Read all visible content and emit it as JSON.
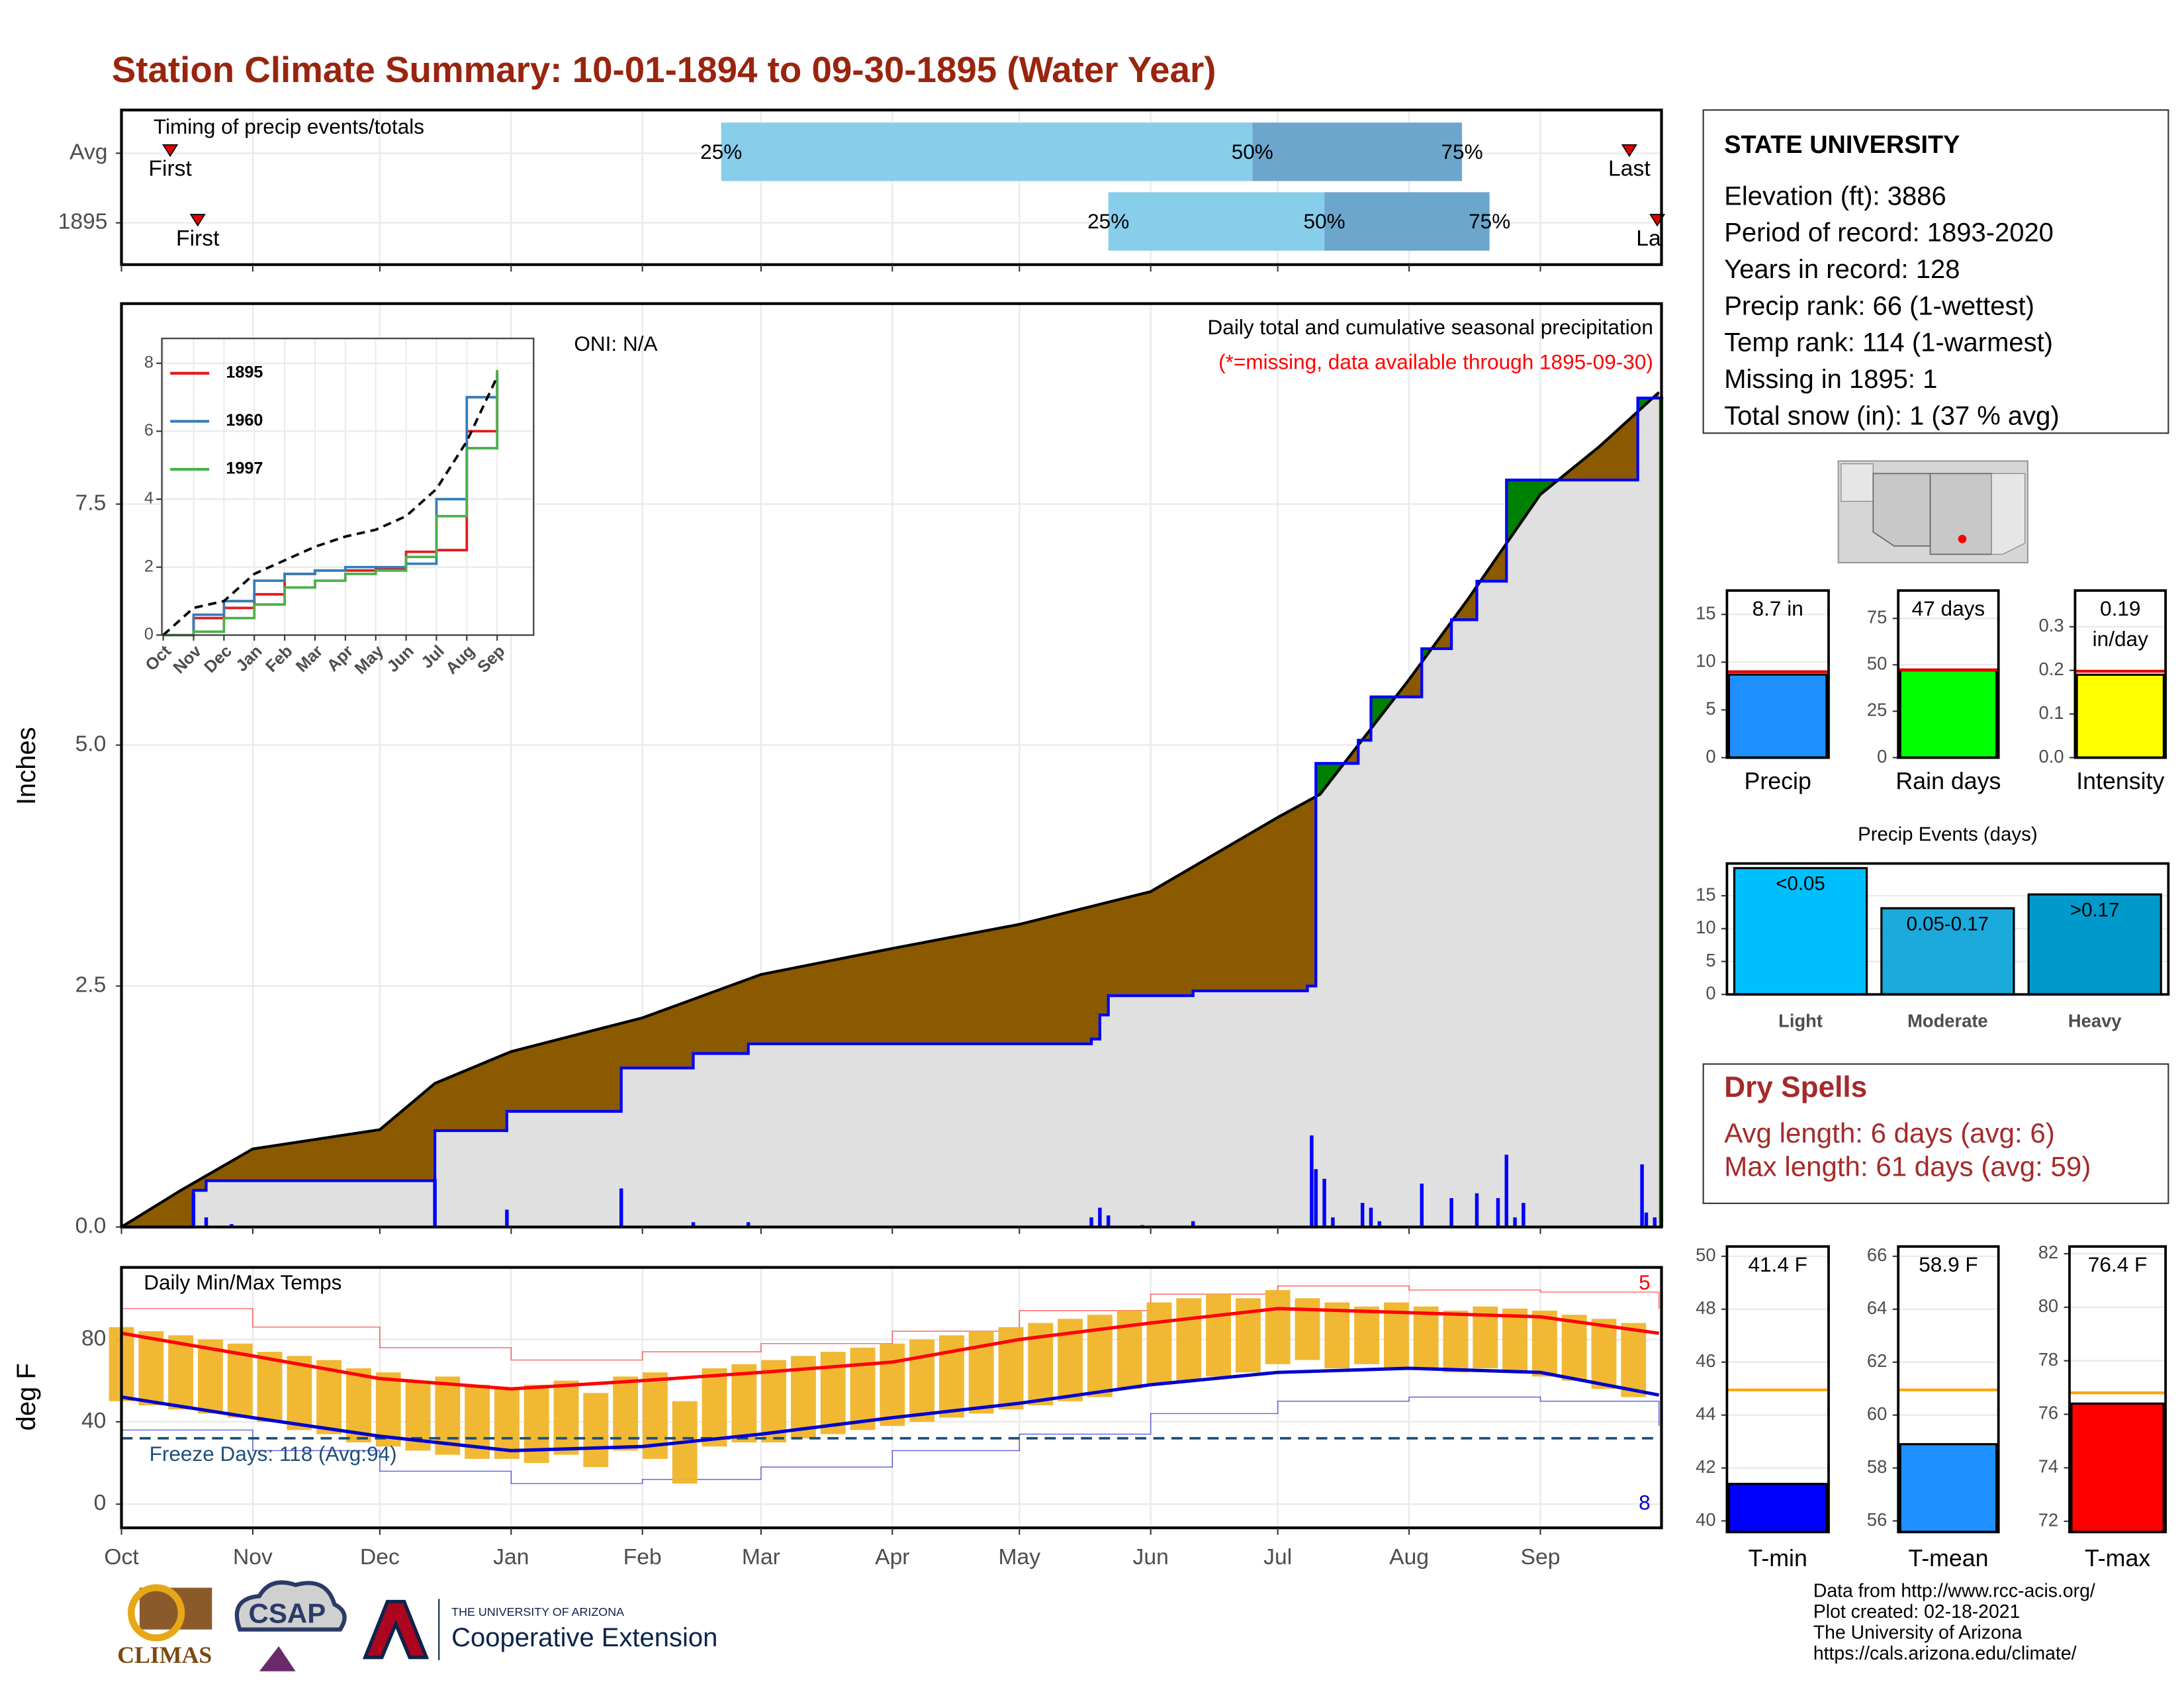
{
  "title": "Station Climate Summary: 10-01-1894 to 09-30-1895 (Water Year)",
  "chart_data": [
    {
      "type": "timing",
      "title": "Timing of precip events/totals",
      "categories": [
        "Avg",
        "1895"
      ],
      "first": [
        11.5,
        18
      ],
      "p25": [
        141.6,
        233
      ],
      "p50": [
        267,
        284
      ],
      "p75": [
        316.5,
        323
      ],
      "last": [
        356,
        362.6
      ],
      "labels": {
        "first": "First",
        "last": "Last",
        "p25": "25%",
        "p50": "50%",
        "p75": "75%"
      },
      "colors": {
        "lower": "#87ceeb",
        "upper": "#6ca6cd",
        "marker": "#e00000"
      }
    },
    {
      "type": "cumulative",
      "title": "Daily total and cumulative seasonal precipitation",
      "subtitle": "(*=missing, data available through 1895-09-30)",
      "annotation": "ONI: N/A",
      "ylabel": "Inches",
      "ylim": [
        0,
        9.58
      ],
      "yticks": [
        {
          "value": 0,
          "label": "0.0"
        },
        2.5,
        {
          "value": 5,
          "label": "5.0"
        },
        7.5
      ],
      "grid": true,
      "average": {
        "x": [
          0,
          14,
          31,
          61,
          74,
          92,
          123,
          151,
          182,
          212,
          243,
          273,
          283,
          304,
          318,
          335,
          349,
          363
        ],
        "values": [
          0,
          0.38,
          0.81,
          1.01,
          1.49,
          1.82,
          2.17,
          2.62,
          2.89,
          3.14,
          3.48,
          4.25,
          4.49,
          5.68,
          6.52,
          7.6,
          8.1,
          8.66
        ]
      },
      "observed": {
        "x": [
          0,
          17,
          20,
          74,
          91,
          118,
          135,
          148,
          229,
          231,
          233,
          253,
          280,
          282,
          292,
          295,
          307,
          314,
          320,
          327,
          358,
          364
        ],
        "values": [
          0,
          0.38,
          0.48,
          1.0,
          1.2,
          1.65,
          1.8,
          1.9,
          1.95,
          2.2,
          2.4,
          2.45,
          2.5,
          4.81,
          5.05,
          5.5,
          6.0,
          6.3,
          6.7,
          7.75,
          8.6,
          8.6
        ],
        "color": "#0000ff"
      },
      "daily": {
        "x": [
          17,
          20,
          26,
          74,
          91,
          118,
          135,
          148,
          229,
          231,
          233,
          241,
          253,
          281,
          282,
          284,
          286,
          293,
          295,
          297,
          307,
          314,
          320,
          325,
          327,
          329,
          331,
          359,
          360,
          362
        ],
        "values": [
          0.35,
          0.1,
          0.03,
          0.5,
          0.18,
          0.4,
          0.05,
          0.05,
          0.1,
          0.2,
          0.12,
          0.02,
          0.06,
          0.95,
          0.6,
          0.5,
          0.1,
          0.25,
          0.2,
          0.06,
          0.45,
          0.3,
          0.35,
          0.3,
          0.75,
          0.1,
          0.25,
          0.65,
          0.15,
          0.1
        ],
        "color": "#0000ff"
      },
      "colors": {
        "below": "#8b5a00",
        "above": "#008000",
        "base": "#e0e0e0"
      }
    },
    {
      "type": "line",
      "categories": [
        "Oct",
        "Nov",
        "Dec",
        "Jan",
        "Feb",
        "Mar",
        "Apr",
        "May",
        "Jun",
        "Jul",
        "Aug",
        "Sep"
      ],
      "ylim": [
        0,
        8.73
      ],
      "yticks": [
        0,
        2,
        4,
        6,
        8
      ],
      "average": [
        0,
        0.8,
        1.0,
        1.8,
        2.2,
        2.6,
        2.9,
        3.1,
        3.5,
        4.3,
        5.7,
        7.6
      ],
      "series": [
        {
          "name": "1895",
          "color": "#e41a1c",
          "values": [
            0,
            0.5,
            0.8,
            1.2,
            1.8,
            1.9,
            1.9,
            1.95,
            2.45,
            2.5,
            6.0,
            7.75
          ]
        },
        {
          "name": "1960",
          "color": "#377eb8",
          "values": [
            0,
            0.6,
            1.0,
            1.6,
            1.8,
            1.9,
            2.0,
            2.0,
            2.1,
            4.0,
            7.0,
            7.7
          ]
        },
        {
          "name": "1997",
          "color": "#4daf4a",
          "values": [
            0,
            0.1,
            0.5,
            0.9,
            1.4,
            1.6,
            1.8,
            1.9,
            2.3,
            3.5,
            5.5,
            7.8
          ]
        }
      ]
    },
    {
      "type": "temps",
      "title": "Daily Min/Max Temps",
      "annotation": "Freeze Days: 118 (Avg:94)",
      "ylabel": "deg F",
      "ylim": [
        -11.5,
        115
      ],
      "yticks": [
        0,
        40,
        80
      ],
      "xlim": [
        0,
        363.6
      ],
      "xticks": [
        {
          "value": 0,
          "label": "Oct"
        },
        {
          "value": 31,
          "label": "Nov"
        },
        {
          "value": 61,
          "label": "Dec"
        },
        {
          "value": 92,
          "label": "Jan"
        },
        {
          "value": 123,
          "label": "Feb"
        },
        {
          "value": 151,
          "label": "Mar"
        },
        {
          "value": 182,
          "label": "Apr"
        },
        {
          "value": 212,
          "label": "May"
        },
        {
          "value": 243,
          "label": "Jun"
        },
        {
          "value": 273,
          "label": "Jul"
        },
        {
          "value": 304,
          "label": "Aug"
        },
        {
          "value": 335,
          "label": "Sep"
        }
      ],
      "freeze_threshold": 32,
      "record_high_count": 5,
      "record_low_count": 8,
      "x": [
        0,
        7,
        14,
        21,
        28,
        35,
        42,
        49,
        56,
        63,
        70,
        77,
        84,
        91,
        98,
        105,
        112,
        119,
        126,
        133,
        140,
        147,
        154,
        161,
        168,
        175,
        182,
        189,
        196,
        203,
        210,
        217,
        224,
        231,
        238,
        245,
        252,
        259,
        266,
        273,
        280,
        287,
        294,
        301,
        308,
        315,
        322,
        329,
        336,
        343,
        350,
        357
      ],
      "high": [
        86,
        84,
        82,
        80,
        78,
        74,
        72,
        70,
        66,
        64,
        60,
        62,
        58,
        56,
        58,
        60,
        54,
        62,
        64,
        50,
        66,
        68,
        70,
        72,
        74,
        76,
        78,
        80,
        82,
        84,
        86,
        88,
        90,
        92,
        94,
        98,
        100,
        102,
        100,
        104,
        100,
        98,
        96,
        98,
        96,
        94,
        96,
        95,
        94,
        92,
        90,
        88
      ],
      "low": [
        50,
        48,
        46,
        44,
        42,
        40,
        36,
        34,
        30,
        28,
        26,
        24,
        22,
        22,
        20,
        24,
        18,
        26,
        22,
        10,
        28,
        30,
        30,
        32,
        34,
        36,
        38,
        40,
        42,
        44,
        46,
        48,
        50,
        52,
        56,
        58,
        60,
        62,
        64,
        68,
        70,
        66,
        68,
        66,
        66,
        64,
        66,
        64,
        62,
        60,
        56,
        52
      ],
      "normals": {
        "x": [
          0,
          31,
          61,
          92,
          123,
          151,
          182,
          212,
          243,
          273,
          304,
          335,
          363
        ],
        "high": [
          83,
          72,
          61,
          56,
          60,
          64,
          69,
          80,
          88,
          95,
          93,
          91,
          83
        ],
        "low": [
          52,
          42,
          33,
          26,
          28,
          34,
          42,
          49,
          58,
          64,
          66,
          64,
          53
        ],
        "record_high": [
          95,
          86,
          76,
          70,
          74,
          78,
          84,
          94,
          102,
          106,
          104,
          103,
          95
        ],
        "record_low": [
          36,
          26,
          16,
          10,
          12,
          18,
          26,
          34,
          44,
          50,
          52,
          50,
          38
        ]
      },
      "colors": {
        "bars": "#f0b429",
        "high": "#ff0000",
        "low": "#0000cd",
        "freeze": "#1f4e79"
      }
    },
    {
      "type": "bar",
      "categories": [
        "Precip"
      ],
      "values": [
        8.7
      ],
      "value_labels": [
        "8.7 in"
      ],
      "average": 9.0,
      "color": "#1e90ff",
      "average_color": "#e00000",
      "ylim": [
        0,
        17.5
      ],
      "yticks": [
        0,
        5,
        10,
        15
      ]
    },
    {
      "type": "bar",
      "categories": [
        "Rain days"
      ],
      "values": [
        47
      ],
      "value_labels": [
        "47 days"
      ],
      "average": 47.3,
      "color": "#00ff00",
      "average_color": "#e00000",
      "ylim": [
        0,
        90
      ],
      "yticks": [
        0,
        25,
        50,
        75
      ]
    },
    {
      "type": "bar",
      "categories": [
        "Intensity"
      ],
      "values": [
        0.19
      ],
      "value_labels": [
        "0.19 in/day"
      ],
      "average": 0.198,
      "color": "#ffff00",
      "average_color": "#e00000",
      "ylim": [
        0,
        0.383
      ],
      "yticks": [
        {
          "value": 0,
          "label": "0.0"
        },
        0.1,
        0.2,
        0.3
      ]
    },
    {
      "type": "bar",
      "title": "Precip Events (days)",
      "categories": [
        "Light",
        "Moderate",
        "Heavy"
      ],
      "values": [
        19.2,
        13.1,
        15.2
      ],
      "bin_labels": [
        "<0.05",
        "0.05-0.17",
        ">0.17"
      ],
      "colors": [
        "#00bfff",
        "#1ca9dc",
        "#0099cc"
      ],
      "ylim": [
        0,
        19.9
      ],
      "yticks": [
        0,
        5,
        10,
        15
      ]
    },
    {
      "type": "bar",
      "categories": [
        "T-min"
      ],
      "values": [
        41.4
      ],
      "value_labels": [
        "41.4 F"
      ],
      "average": 44.95,
      "color": "#0000ff",
      "average_color": "#ffa500",
      "ylim": [
        39.58,
        50.37
      ],
      "yticks": [
        40,
        42,
        44,
        46,
        48,
        50
      ]
    },
    {
      "type": "bar",
      "categories": [
        "T-mean"
      ],
      "values": [
        58.9
      ],
      "value_labels": [
        "58.9 F"
      ],
      "average": 60.95,
      "color": "#1e90ff",
      "average_color": "#ffa500",
      "ylim": [
        55.58,
        66.37
      ],
      "yticks": [
        56,
        58,
        60,
        62,
        64,
        66
      ]
    },
    {
      "type": "bar",
      "categories": [
        "T-max"
      ],
      "values": [
        76.4
      ],
      "value_labels": [
        "76.4 F"
      ],
      "average": 76.8,
      "color": "#ff0000",
      "average_color": "#ffa500",
      "ylim": [
        71.6,
        82.27
      ],
      "yticks": [
        72,
        74,
        76,
        78,
        80,
        82
      ]
    }
  ],
  "station": {
    "name": "STATE UNIVERSITY",
    "lines": [
      "Elevation (ft): 3886",
      "Period of record: 1893-2020",
      "Years in record: 128",
      "Precip rank: 66 (1-wettest)",
      "Temp rank: 114 (1-warmest)",
      "Missing in 1895: 1",
      "Total snow (in): 1 (37 % avg)"
    ]
  },
  "dry_spells": {
    "title": "Dry Spells",
    "lines": [
      "Avg length: 6 days (avg: 6)",
      "Max length: 61 days (avg: 59)"
    ]
  },
  "footer": [
    "Data from http://www.rcc-acis.org/",
    "Plot created: 02-18-2021",
    "The University of Arizona",
    "https://cals.arizona.edu/climate/"
  ],
  "logos": {
    "climas": "CLIMAS",
    "csap": "CSAP",
    "ua_small": "THE UNIVERSITY OF ARIZONA",
    "ua_large": "Cooperative Extension"
  }
}
